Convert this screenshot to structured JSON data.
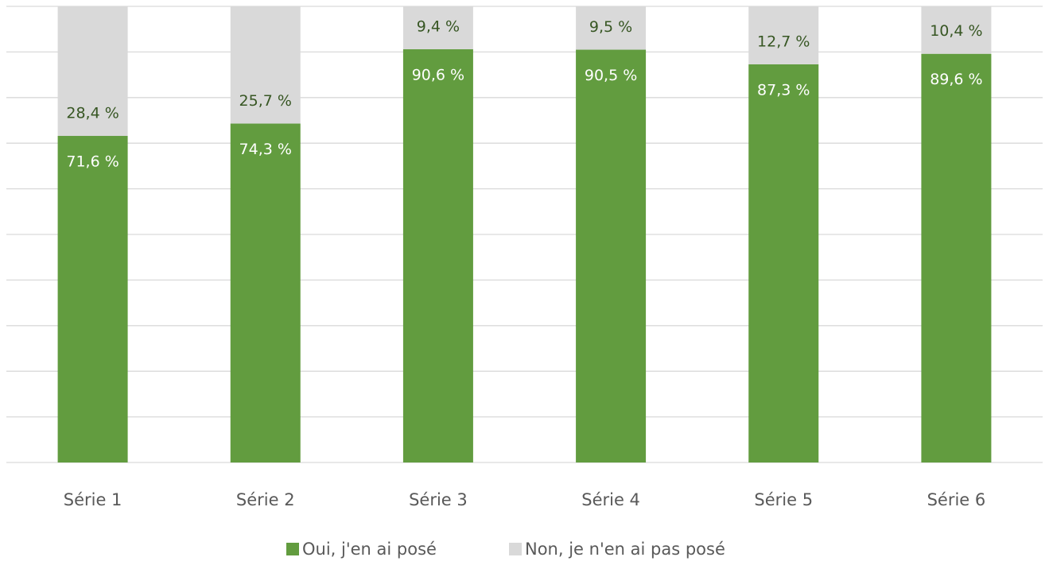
{
  "chart_data": {
    "type": "stacked_bar",
    "categories": [
      "Série 1",
      "Série 2",
      "Série 3",
      "Série 4",
      "Série 5",
      "Série 6"
    ],
    "series": [
      {
        "name": "Oui, j'en ai posé",
        "color": "#629c3f",
        "values": [
          71.6,
          74.3,
          90.6,
          90.5,
          87.3,
          89.6
        ],
        "value_labels": [
          "71,6 %",
          "74,3 %",
          "90,6 %",
          "90,5 %",
          "87,3 %",
          "89,6 %"
        ]
      },
      {
        "name": "Non, je n'en ai pas posé",
        "color": "#d9d9d9",
        "values": [
          28.4,
          25.7,
          9.4,
          9.5,
          12.7,
          10.4
        ],
        "value_labels": [
          "28,4 %",
          "25,7 %",
          "9,4 %",
          "9,5 %",
          "12,7 %",
          "10,4 %"
        ]
      }
    ],
    "ylim": [
      0,
      100
    ],
    "yticks": [
      0,
      10,
      20,
      30,
      40,
      50,
      60,
      70,
      80,
      90,
      100
    ],
    "grid": true,
    "legend": "bottom"
  }
}
